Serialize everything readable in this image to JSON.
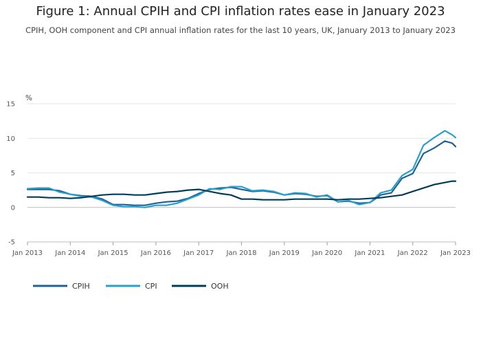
{
  "header": {
    "title": "Figure 1: Annual CPIH and CPI inflation rates ease in January 2023",
    "subtitle": "CPIH, OOH component and CPI annual inflation rates for the last 10 years, UK, January 2013 to January 2023"
  },
  "chart_data": {
    "type": "line",
    "title": "Figure 1: Annual CPIH and CPI inflation rates ease in January 2023",
    "subtitle": "CPIH, OOH component and CPI annual inflation rates for the last 10 years, UK, January 2013 to January 2023",
    "ylabel": "%",
    "ylim": [
      -5,
      15
    ],
    "yticks": [
      "15",
      "10",
      "5",
      "0",
      "-5"
    ],
    "xlim": [
      2013.0,
      2023.0
    ],
    "xticks": [
      "Jan 2013",
      "Jan 2014",
      "Jan 2015",
      "Jan 2016",
      "Jan 2017",
      "Jan 2018",
      "Jan 2019",
      "Jan 2020",
      "Jan 2021",
      "Jan 2022",
      "Jan 2023"
    ],
    "grid": true,
    "legend_position": "bottom-left",
    "series": [
      {
        "name": "CPIH",
        "color": "#206095",
        "points": [
          [
            2013.0,
            2.6
          ],
          [
            2013.25,
            2.6
          ],
          [
            2013.5,
            2.6
          ],
          [
            2013.75,
            2.4
          ],
          [
            2014.0,
            1.9
          ],
          [
            2014.25,
            1.7
          ],
          [
            2014.5,
            1.6
          ],
          [
            2014.75,
            1.2
          ],
          [
            2015.0,
            0.4
          ],
          [
            2015.25,
            0.4
          ],
          [
            2015.5,
            0.3
          ],
          [
            2015.75,
            0.3
          ],
          [
            2016.0,
            0.6
          ],
          [
            2016.25,
            0.8
          ],
          [
            2016.5,
            0.9
          ],
          [
            2016.75,
            1.3
          ],
          [
            2017.0,
            2.0
          ],
          [
            2017.25,
            2.6
          ],
          [
            2017.5,
            2.8
          ],
          [
            2017.75,
            2.9
          ],
          [
            2018.0,
            2.6
          ],
          [
            2018.25,
            2.3
          ],
          [
            2018.5,
            2.4
          ],
          [
            2018.75,
            2.2
          ],
          [
            2019.0,
            1.8
          ],
          [
            2019.25,
            2.0
          ],
          [
            2019.5,
            1.9
          ],
          [
            2019.75,
            1.6
          ],
          [
            2020.0,
            1.7
          ],
          [
            2020.25,
            0.8
          ],
          [
            2020.5,
            0.9
          ],
          [
            2020.75,
            0.6
          ],
          [
            2021.0,
            0.7
          ],
          [
            2021.25,
            1.8
          ],
          [
            2021.5,
            2.1
          ],
          [
            2021.75,
            4.2
          ],
          [
            2022.0,
            4.9
          ],
          [
            2022.25,
            7.8
          ],
          [
            2022.5,
            8.6
          ],
          [
            2022.75,
            9.6
          ],
          [
            2022.92,
            9.3
          ],
          [
            2023.0,
            8.8
          ]
        ]
      },
      {
        "name": "CPI",
        "color": "#27a0cc",
        "points": [
          [
            2013.0,
            2.7
          ],
          [
            2013.25,
            2.8
          ],
          [
            2013.5,
            2.8
          ],
          [
            2013.75,
            2.2
          ],
          [
            2014.0,
            1.9
          ],
          [
            2014.25,
            1.6
          ],
          [
            2014.5,
            1.5
          ],
          [
            2014.75,
            1.0
          ],
          [
            2015.0,
            0.3
          ],
          [
            2015.25,
            0.1
          ],
          [
            2015.5,
            0.1
          ],
          [
            2015.75,
            0.0
          ],
          [
            2016.0,
            0.3
          ],
          [
            2016.25,
            0.3
          ],
          [
            2016.5,
            0.6
          ],
          [
            2016.75,
            1.2
          ],
          [
            2017.0,
            1.8
          ],
          [
            2017.25,
            2.7
          ],
          [
            2017.5,
            2.6
          ],
          [
            2017.75,
            3.0
          ],
          [
            2018.0,
            3.0
          ],
          [
            2018.25,
            2.4
          ],
          [
            2018.5,
            2.5
          ],
          [
            2018.75,
            2.3
          ],
          [
            2019.0,
            1.8
          ],
          [
            2019.25,
            2.1
          ],
          [
            2019.5,
            2.0
          ],
          [
            2019.75,
            1.5
          ],
          [
            2020.0,
            1.8
          ],
          [
            2020.25,
            0.8
          ],
          [
            2020.5,
            1.0
          ],
          [
            2020.75,
            0.4
          ],
          [
            2021.0,
            0.7
          ],
          [
            2021.25,
            2.1
          ],
          [
            2021.5,
            2.5
          ],
          [
            2021.75,
            4.6
          ],
          [
            2022.0,
            5.5
          ],
          [
            2022.25,
            9.0
          ],
          [
            2022.5,
            10.1
          ],
          [
            2022.75,
            11.1
          ],
          [
            2022.92,
            10.5
          ],
          [
            2023.0,
            10.1
          ]
        ]
      },
      {
        "name": "OOH",
        "color": "#003c57",
        "points": [
          [
            2013.0,
            1.5
          ],
          [
            2013.25,
            1.5
          ],
          [
            2013.5,
            1.4
          ],
          [
            2013.75,
            1.4
          ],
          [
            2014.0,
            1.3
          ],
          [
            2014.25,
            1.4
          ],
          [
            2014.5,
            1.6
          ],
          [
            2014.75,
            1.8
          ],
          [
            2015.0,
            1.9
          ],
          [
            2015.25,
            1.9
          ],
          [
            2015.5,
            1.8
          ],
          [
            2015.75,
            1.8
          ],
          [
            2016.0,
            2.0
          ],
          [
            2016.25,
            2.2
          ],
          [
            2016.5,
            2.3
          ],
          [
            2016.75,
            2.5
          ],
          [
            2017.0,
            2.6
          ],
          [
            2017.25,
            2.3
          ],
          [
            2017.5,
            2.0
          ],
          [
            2017.75,
            1.8
          ],
          [
            2018.0,
            1.2
          ],
          [
            2018.25,
            1.2
          ],
          [
            2018.5,
            1.1
          ],
          [
            2018.75,
            1.1
          ],
          [
            2019.0,
            1.1
          ],
          [
            2019.25,
            1.2
          ],
          [
            2019.5,
            1.2
          ],
          [
            2019.75,
            1.2
          ],
          [
            2020.0,
            1.2
          ],
          [
            2020.25,
            1.1
          ],
          [
            2020.5,
            1.2
          ],
          [
            2020.75,
            1.2
          ],
          [
            2021.0,
            1.3
          ],
          [
            2021.25,
            1.4
          ],
          [
            2021.5,
            1.6
          ],
          [
            2021.75,
            1.8
          ],
          [
            2022.0,
            2.3
          ],
          [
            2022.25,
            2.8
          ],
          [
            2022.5,
            3.3
          ],
          [
            2022.75,
            3.6
          ],
          [
            2022.92,
            3.8
          ],
          [
            2023.0,
            3.8
          ]
        ]
      }
    ]
  }
}
